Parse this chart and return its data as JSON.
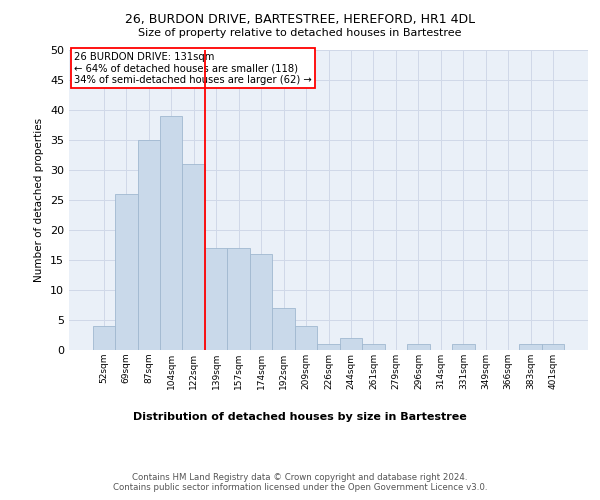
{
  "title1": "26, BURDON DRIVE, BARTESTREE, HEREFORD, HR1 4DL",
  "title2": "Size of property relative to detached houses in Bartestree",
  "xlabel": "Distribution of detached houses by size in Bartestree",
  "ylabel": "Number of detached properties",
  "categories": [
    "52sqm",
    "69sqm",
    "87sqm",
    "104sqm",
    "122sqm",
    "139sqm",
    "157sqm",
    "174sqm",
    "192sqm",
    "209sqm",
    "226sqm",
    "244sqm",
    "261sqm",
    "279sqm",
    "296sqm",
    "314sqm",
    "331sqm",
    "349sqm",
    "366sqm",
    "383sqm",
    "401sqm"
  ],
  "values": [
    4,
    26,
    35,
    39,
    31,
    17,
    17,
    16,
    7,
    4,
    1,
    2,
    1,
    0,
    1,
    0,
    1,
    0,
    0,
    1,
    1
  ],
  "bar_color": "#c9d9ea",
  "bar_edge_color": "#a0b8d0",
  "vline_color": "red",
  "annotation_text": "26 BURDON DRIVE: 131sqm\n← 64% of detached houses are smaller (118)\n34% of semi-detached houses are larger (62) →",
  "annotation_box_color": "white",
  "annotation_box_edge_color": "red",
  "ylim": [
    0,
    50
  ],
  "yticks": [
    0,
    5,
    10,
    15,
    20,
    25,
    30,
    35,
    40,
    45,
    50
  ],
  "grid_color": "#d0d8e8",
  "bg_color": "#eaf0f8",
  "footer": "Contains HM Land Registry data © Crown copyright and database right 2024.\nContains public sector information licensed under the Open Government Licence v3.0."
}
